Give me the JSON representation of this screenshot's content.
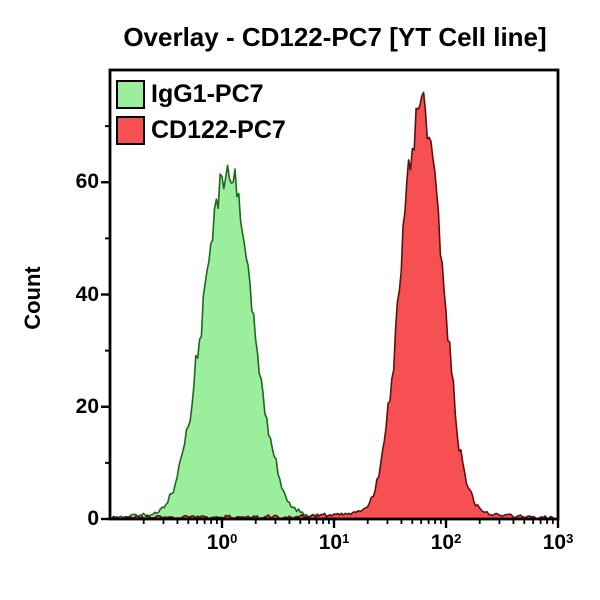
{
  "title": "Overlay - CD122-PC7 [YT Cell line]",
  "axes": {
    "y_label": "Count",
    "y_ticks": [
      0,
      20,
      40,
      60
    ],
    "y_minor_ticks": [
      10,
      30,
      50,
      70
    ],
    "y_max": 80,
    "x_ticks": [
      {
        "base": "10",
        "exp": "0",
        "decade": 0
      },
      {
        "base": "10",
        "exp": "1",
        "decade": 1
      },
      {
        "base": "10",
        "exp": "2",
        "decade": 2
      },
      {
        "base": "10",
        "exp": "3",
        "decade": 3
      }
    ],
    "x_log_range": [
      -1,
      3
    ]
  },
  "legend": [
    {
      "label": "IgG1-PC7",
      "fill": "#9BEE9B",
      "stroke": "#1F6620"
    },
    {
      "label": "CD122-PC7",
      "fill": "#F65052",
      "stroke": "#5C1212"
    }
  ],
  "colors": {
    "frame": "#000000",
    "background": "#FFFFFF",
    "text": "#000000"
  },
  "chart_data": {
    "type": "area",
    "subtype": "flow-cytometry-histogram-overlay",
    "x_scale": "log10",
    "x_start": -1,
    "x_step": 0.05,
    "title": "Overlay - CD122-PC7 [YT Cell line]",
    "xlabel": "",
    "ylabel": "Count",
    "ylim": [
      0,
      80
    ],
    "xlim_log10": [
      -1,
      3
    ],
    "legend_position": "top-left",
    "grid": false,
    "series": [
      {
        "name": "IgG1-PC7",
        "peak_x_log10": 0.05,
        "peak_count": 63,
        "fill": "#9BEE9B",
        "stroke": "#1F6620",
        "values": [
          0,
          0,
          0.5,
          0,
          0.8,
          0.3,
          1,
          0.5,
          1.2,
          1.8,
          2.6,
          4.5,
          7.5,
          12,
          16.5,
          24,
          32,
          42,
          49,
          57,
          61,
          63,
          60,
          58,
          49,
          42,
          32,
          25,
          18,
          12.5,
          8,
          5,
          3,
          2,
          1.2,
          0.8,
          0.4,
          0.9,
          0.3,
          0.6,
          0.2,
          0.7,
          0.3,
          0.5,
          0.2,
          0.4,
          0.1,
          0.3,
          0,
          0.2,
          0,
          0.2,
          0,
          0.1,
          0,
          0.2,
          0,
          0.1,
          0,
          0.2,
          0,
          0.1,
          0,
          0,
          0.1,
          0,
          0,
          0.1,
          0,
          0,
          0.1,
          0,
          0,
          0,
          0,
          0,
          0,
          0,
          0,
          0,
          0
        ]
      },
      {
        "name": "CD122-PC7",
        "peak_x_log10": 1.8,
        "peak_count": 76,
        "fill": "#F65052",
        "stroke": "#5C1212",
        "values": [
          0,
          0.3,
          0,
          0.4,
          0.2,
          0.5,
          0.2,
          0.4,
          0.2,
          0.5,
          0.3,
          0.4,
          0.2,
          0.4,
          0.3,
          0.5,
          0.3,
          0.4,
          0.2,
          0.4,
          0.3,
          0.5,
          0.2,
          0.4,
          0.3,
          0.2,
          0.4,
          0.2,
          0.5,
          0.3,
          0.4,
          0.2,
          0.5,
          0.3,
          0.6,
          0.4,
          0.7,
          0.5,
          0.8,
          0.6,
          0.9,
          0.7,
          1.0,
          0.8,
          1.2,
          1.5,
          2.2,
          4,
          7.5,
          14,
          21,
          34,
          44,
          60,
          66,
          73,
          76,
          68,
          62,
          47,
          37,
          26,
          15,
          10,
          5.5,
          3,
          2,
          1.2,
          0.8,
          1.0,
          0.5,
          0.8,
          0.4,
          0.6,
          0.3,
          0.5,
          0.2,
          0.4,
          0.2,
          0.3,
          0
        ]
      }
    ]
  }
}
